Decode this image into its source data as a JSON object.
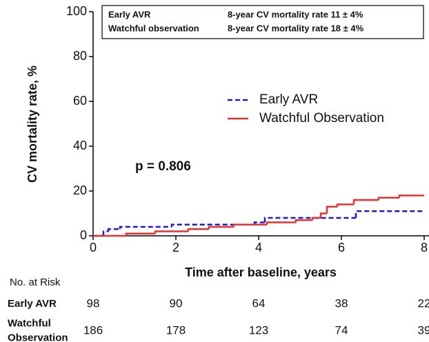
{
  "chart_data": {
    "type": "step",
    "ylabel": "CV mortality rate, %",
    "xlabel": "Time after baseline, years",
    "xlim": [
      0,
      8
    ],
    "xticks": [
      0,
      2,
      4,
      6,
      8
    ],
    "ylim": [
      0,
      100
    ],
    "yticks": [
      0,
      20,
      40,
      60,
      80,
      100
    ],
    "legend_position": "right",
    "annotations": {
      "summary": [
        [
          "Early AVR",
          "8-year CV mortality rate 11 ± 4%"
        ],
        [
          "Watchful observation",
          "8-year CV mortality rate 18 ± 4%"
        ]
      ],
      "p_value": "p = 0.806"
    },
    "series": [
      {
        "name": "Early AVR",
        "color": "#1a1ad0",
        "dashed": true,
        "x": [
          0,
          0.25,
          0.37,
          0.65,
          1.9,
          3.9,
          4.15,
          6.35
        ],
        "values": [
          0,
          2,
          3,
          4,
          5,
          6,
          8,
          11
        ]
      },
      {
        "name": "Watchful Observation",
        "color": "#e8312f",
        "dashed": false,
        "x": [
          0,
          0.8,
          1.5,
          2.3,
          2.8,
          3.4,
          4.2,
          4.9,
          5.3,
          5.5,
          5.65,
          5.9,
          6.3,
          6.9,
          7.4
        ],
        "values": [
          0,
          1,
          2,
          3,
          4,
          5,
          6,
          7,
          8,
          10,
          13,
          14,
          16,
          17,
          18
        ]
      }
    ],
    "risk_table": {
      "title": "No. at Risk",
      "rows": [
        {
          "label": [
            "Early AVR"
          ],
          "values": [
            98,
            90,
            64,
            38,
            22
          ]
        },
        {
          "label": [
            "Watchful",
            "Observation"
          ],
          "values": [
            186,
            178,
            123,
            74,
            39
          ]
        }
      ]
    }
  }
}
